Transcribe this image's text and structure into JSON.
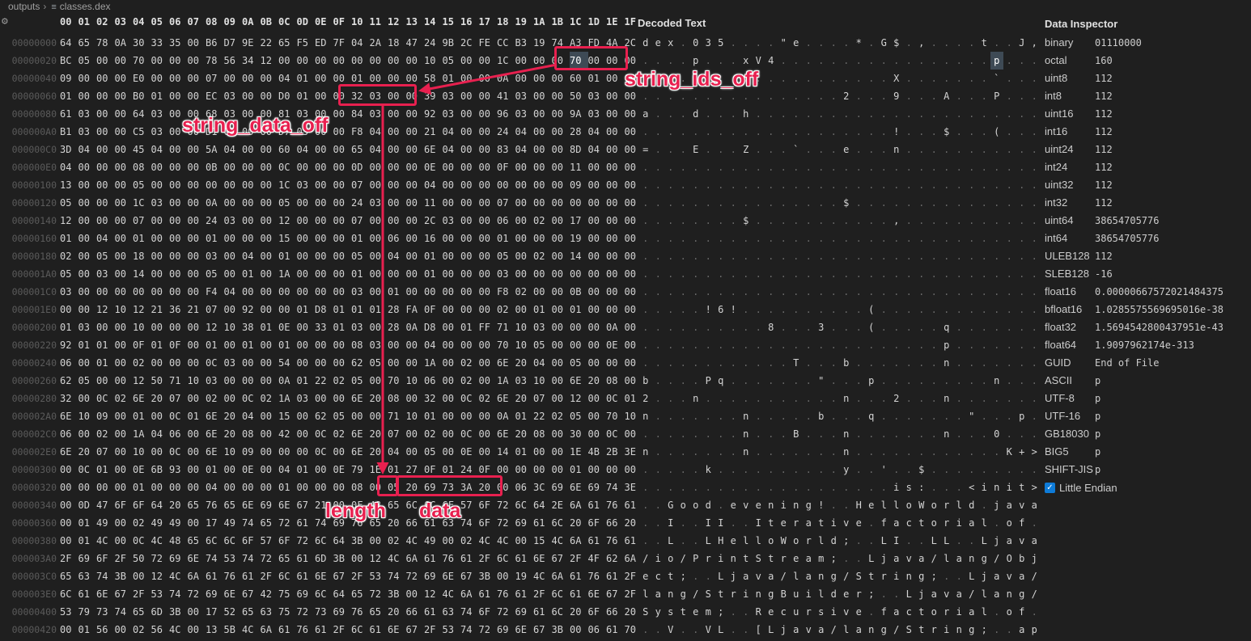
{
  "breadcrumb": {
    "folder": "outputs",
    "file": "classes.dex"
  },
  "hex_header": [
    "00",
    "01",
    "02",
    "03",
    "04",
    "05",
    "06",
    "07",
    "08",
    "09",
    "0A",
    "0B",
    "0C",
    "0D",
    "0E",
    "0F",
    "10",
    "11",
    "12",
    "13",
    "14",
    "15",
    "16",
    "17",
    "18",
    "19",
    "1A",
    "1B",
    "1C",
    "1D",
    "1E",
    "1F"
  ],
  "decoded_title": "Decoded Text",
  "rows": [
    {
      "offset": "00000000",
      "hex": "64 65 78 0A 30 33 35 00 B6 D7 9E 22 65 F5 ED 7F 04 2A 18 47 24 9B 2C FE CC B3 19 74 A3 FD 4A 2C",
      "text": "d e x . 0 3 5 . . . . \" e . . . . * . G $ . , . . . . t . . J ,"
    },
    {
      "offset": "00000020",
      "hex": "BC 05 00 00 70 00 00 00 78 56 34 12 00 00 00 00 00 00 00 00 10 05 00 00 1C 00 00 00 70 00 00 00",
      "text": ". . . . p . . . x V 4 . . . . . . . . . . . . . . . . . p . . ."
    },
    {
      "offset": "00000040",
      "hex": "09 00 00 00 E0 00 00 00 07 00 00 00 04 01 00 00 01 00 00 00 58 01 00 00 0A 00 00 00 60 01 00 00",
      "text": ". . . . . . . . . . . . . . . . . . . . X . . . . . . . ` . . ."
    },
    {
      "offset": "00000060",
      "hex": "01 00 00 00 B0 01 00 00 EC 03 00 00 D0 01 00 00 32 03 00 00 39 03 00 00 41 03 00 00 50 03 00 00",
      "text": ". . . . . . . . . . . . . . . . 2 . . . 9 . . . A . . . P . . ."
    },
    {
      "offset": "00000080",
      "hex": "61 03 00 00 64 03 00 00 68 03 00 00 81 03 00 00 84 03 00 00 92 03 00 00 96 03 00 00 9A 03 00 00",
      "text": "a . . . d . . . h . . . . . . . . . . . . . . . . . . . . . . ."
    },
    {
      "offset": "000000A0",
      "hex": "B1 03 00 00 C5 03 00 00 D1 03 00 00 D7 03 00 00 F8 04 00 00 21 04 00 00 24 04 00 00 28 04 00 00",
      "text": ". . . . . . . . . . . . . . . . . . . . ! . . . $ . . . ( . . ."
    },
    {
      "offset": "000000C0",
      "hex": "3D 04 00 00 45 04 00 00 5A 04 00 00 60 04 00 00 65 04 00 00 6E 04 00 00 83 04 00 00 8D 04 00 00",
      "text": "= . . . E . . . Z . . . ` . . . e . . . n . . . . . . . . . . ."
    },
    {
      "offset": "000000E0",
      "hex": "04 00 00 00 08 00 00 00 0B 00 00 00 0C 00 00 00 0D 00 00 00 0E 00 00 00 0F 00 00 00 11 00 00 00",
      "text": ". . . . . . . . . . . . . . . . . . . . . . . . . . . . . . . ."
    },
    {
      "offset": "00000100",
      "hex": "13 00 00 00 05 00 00 00 00 00 00 00 1C 03 00 00 07 00 00 00 04 00 00 00 00 00 00 00 09 00 00 00",
      "text": ". . . . . . . . . . . . . . . . . . . . . . . . . . . . . . . ."
    },
    {
      "offset": "00000120",
      "hex": "05 00 00 00 1C 03 00 00 0A 00 00 00 05 00 00 00 24 03 00 00 11 00 00 00 07 00 00 00 00 00 00 00",
      "text": ". . . . . . . . . . . . . . . . $ . . . . . . . . . . . . . . ."
    },
    {
      "offset": "00000140",
      "hex": "12 00 00 00 07 00 00 00 24 03 00 00 12 00 00 00 07 00 00 00 2C 03 00 00 06 00 02 00 17 00 00 00",
      "text": ". . . . . . . . $ . . . . . . . . . . . , . . . . . . . . . . ."
    },
    {
      "offset": "00000160",
      "hex": "01 00 04 00 01 00 00 00 01 00 00 00 15 00 00 00 01 00 06 00 16 00 00 00 01 00 00 00 19 00 00 00",
      "text": ". . . . . . . . . . . . . . . . . . . . . . . . . . . . . . . ."
    },
    {
      "offset": "00000180",
      "hex": "02 00 05 00 18 00 00 00 03 00 04 00 01 00 00 00 05 00 04 00 01 00 00 00 05 00 02 00 14 00 00 00",
      "text": ". . . . . . . . . . . . . . . . . . . . . . . . . . . . . . . ."
    },
    {
      "offset": "000001A0",
      "hex": "05 00 03 00 14 00 00 00 05 00 01 00 1A 00 00 00 01 00 00 00 01 00 00 00 03 00 00 00 00 00 00 00",
      "text": ". . . . . . . . . . . . . . . . . . . . . . . . . . . . . . . ."
    },
    {
      "offset": "000001C0",
      "hex": "03 00 00 00 00 00 00 00 F4 04 00 00 00 00 00 00 03 00 01 00 00 00 00 00 F8 02 00 00 0B 00 00 00",
      "text": ". . . . . . . . . . . . . . . . . . . . . . . . . . . . . . . ."
    },
    {
      "offset": "000001E0",
      "hex": "00 00 12 10 12 21 36 21 07 00 92 00 00 01 D8 01 01 01 28 FA 0F 00 00 00 02 00 01 00 01 00 00 00",
      "text": ". . . . . ! 6 ! . . . . . . . . . . ( . . . . . . . . . . . . ."
    },
    {
      "offset": "00000200",
      "hex": "01 03 00 00 10 00 00 00 12 10 38 01 0E 00 33 01 03 00 28 0A D8 00 01 FF 71 10 03 00 00 00 0A 00",
      "text": ". . . . . . . . . . 8 . . . 3 . . . ( . . . . . q . . . . . . ."
    },
    {
      "offset": "00000220",
      "hex": "92 01 01 00 0F 01 0F 00 01 00 01 00 01 00 00 00 08 03 00 00 04 00 00 00 70 10 05 00 00 00 0E 00",
      "text": ". . . . . . . . . . . . . . . . . . . . . . . . p . . . . . . ."
    },
    {
      "offset": "00000240",
      "hex": "06 00 01 00 02 00 00 00 0C 03 00 00 54 00 00 00 62 05 00 00 1A 00 02 00 6E 20 04 00 05 00 00 00",
      "text": ". . . . . . . . . . . . T . . . b . . . . . . . n . . . . . . ."
    },
    {
      "offset": "00000260",
      "hex": "62 05 00 00 12 50 71 10 03 00 00 00 0A 01 22 02 05 00 70 10 06 00 02 00 1A 03 10 00 6E 20 08 00",
      "text": "b . . . . P q . . . . . . . \" . . . p . . . . . . . . . n . . ."
    },
    {
      "offset": "00000280",
      "hex": "32 00 0C 02 6E 20 07 00 02 00 0C 02 1A 03 00 00 6E 20 08 00 32 00 0C 02 6E 20 07 00 12 00 0C 01",
      "text": "2 . . . n . . . . . . . . . . . n . . . 2 . . . n . . . . . . ."
    },
    {
      "offset": "000002A0",
      "hex": "6E 10 09 00 01 00 0C 01 6E 20 04 00 15 00 62 05 00 00 71 10 01 00 00 00 0A 01 22 02 05 00 70 10",
      "text": "n . . . . . . . n . . . . . b . . . q . . . . . . . \" . . . p ."
    },
    {
      "offset": "000002C0",
      "hex": "06 00 02 00 1A 04 06 00 6E 20 08 00 42 00 0C 02 6E 20 07 00 02 00 0C 00 6E 20 08 00 30 00 0C 00",
      "text": ". . . . . . . . n . . . B . . . n . . . . . . . n . . . 0 . . ."
    },
    {
      "offset": "000002E0",
      "hex": "6E 20 07 00 10 00 0C 00 6E 10 09 00 00 00 0C 00 6E 20 04 00 05 00 0E 00 14 01 00 00 1E 4B 2B 3E",
      "text": "n . . . . . . . n . . . . . . . n . . . . . . . . . . . . K + >"
    },
    {
      "offset": "00000300",
      "hex": "00 0C 01 00 0E 6B 93 00 01 00 0E 00 04 01 00 0E 79 1E 01 27 0F 01 24 0F 00 00 00 00 01 00 00 00",
      "text": ". . . . . k . . . . . . . . . . y . . ' . . $ . . . . . . . . ."
    },
    {
      "offset": "00000320",
      "hex": "00 00 00 00 01 00 00 00 04 00 00 00 01 00 00 00 08 00 05 20 69 73 3A 20 00 06 3C 69 6E 69 74 3E",
      "text": ". . . . . . . . . . . . . . . . . . . . i s : . . . < i n i t >"
    },
    {
      "offset": "00000340",
      "hex": "00 0D 47 6F 6F 64 20 65 76 65 6E 69 6E 67 21 00 0F 48 65 6C 6C 6F 57 6F 72 6C 64 2E 6A 61 76 61",
      "text": ". . G o o d . e v e n i n g ! . . H e l l o W o r l d . j a v a"
    },
    {
      "offset": "00000360",
      "hex": "00 01 49 00 02 49 49 00 17 49 74 65 72 61 74 69 76 65 20 66 61 63 74 6F 72 69 61 6C 20 6F 66 20",
      "text": ". . I . . I I . . I t e r a t i v e . f a c t o r i a l . o f ."
    },
    {
      "offset": "00000380",
      "hex": "00 01 4C 00 0C 4C 48 65 6C 6C 6F 57 6F 72 6C 64 3B 00 02 4C 49 00 02 4C 4C 00 15 4C 6A 61 76 61",
      "text": ". . L . . L H e l l o W o r l d ; . . L I . . L L . . L j a v a"
    },
    {
      "offset": "000003A0",
      "hex": "2F 69 6F 2F 50 72 69 6E 74 53 74 72 65 61 6D 3B 00 12 4C 6A 61 76 61 2F 6C 61 6E 67 2F 4F 62 6A",
      "text": "/ i o / P r i n t S t r e a m ; . . L j a v a / l a n g / O b j"
    },
    {
      "offset": "000003C0",
      "hex": "65 63 74 3B 00 12 4C 6A 61 76 61 2F 6C 61 6E 67 2F 53 74 72 69 6E 67 3B 00 19 4C 6A 61 76 61 2F",
      "text": "e c t ; . . L j a v a / l a n g / S t r i n g ; . . L j a v a /"
    },
    {
      "offset": "000003E0",
      "hex": "6C 61 6E 67 2F 53 74 72 69 6E 67 42 75 69 6C 64 65 72 3B 00 12 4C 6A 61 76 61 2F 6C 61 6E 67 2F",
      "text": "l a n g / S t r i n g B u i l d e r ; . . L j a v a / l a n g /"
    },
    {
      "offset": "00000400",
      "hex": "53 79 73 74 65 6D 3B 00 17 52 65 63 75 72 73 69 76 65 20 66 61 63 74 6F 72 69 61 6C 20 6F 66 20",
      "text": "S y s t e m ; . . R e c u r s i v e . f a c t o r i a l . o f ."
    },
    {
      "offset": "00000420",
      "hex": "00 01 56 00 02 56 4C 00 13 5B 4C 6A 61 76 61 2F 6C 61 6E 67 2F 53 74 72 69 6E 67 3B 00 06 61 70",
      "text": ". . V . . V L . . [ L j a v a / l a n g / S t r i n g ; . . a p"
    }
  ],
  "inspector": {
    "title": "Data Inspector",
    "rows": [
      {
        "key": "binary",
        "value": "01110000"
      },
      {
        "key": "octal",
        "value": "160"
      },
      {
        "key": "uint8",
        "value": "112"
      },
      {
        "key": "int8",
        "value": "112"
      },
      {
        "key": "uint16",
        "value": "112"
      },
      {
        "key": "int16",
        "value": "112"
      },
      {
        "key": "uint24",
        "value": "112"
      },
      {
        "key": "int24",
        "value": "112"
      },
      {
        "key": "uint32",
        "value": "112"
      },
      {
        "key": "int32",
        "value": "112"
      },
      {
        "key": "uint64",
        "value": "38654705776"
      },
      {
        "key": "int64",
        "value": "38654705776"
      },
      {
        "key": "ULEB128",
        "value": "112"
      },
      {
        "key": "SLEB128",
        "value": "-16"
      },
      {
        "key": "float16",
        "value": "0.00000667572021484375"
      },
      {
        "key": "bfloat16",
        "value": "1.0285575569695016e-38"
      },
      {
        "key": "float32",
        "value": "1.5694542800437951e-43"
      },
      {
        "key": "float64",
        "value": "1.9097962174e-313"
      },
      {
        "key": "GUID",
        "value": "End of File"
      },
      {
        "key": "ASCII",
        "value": "p"
      },
      {
        "key": "UTF-8",
        "value": "p"
      },
      {
        "key": "UTF-16",
        "value": "p"
      },
      {
        "key": "GB18030",
        "value": "p"
      },
      {
        "key": "BIG5",
        "value": "p"
      },
      {
        "key": "SHIFT-JIS",
        "value": "p"
      }
    ],
    "little_endian_label": "Little Endian",
    "little_endian_checked": true
  },
  "annotations": {
    "string_ids_off": "string_ids_off",
    "string_data_off": "string_data_off",
    "length": "length",
    "data": "data"
  },
  "colors": {
    "accent": "#e8204f",
    "background": "#1f1f1f",
    "selection": "#3e4a55"
  }
}
